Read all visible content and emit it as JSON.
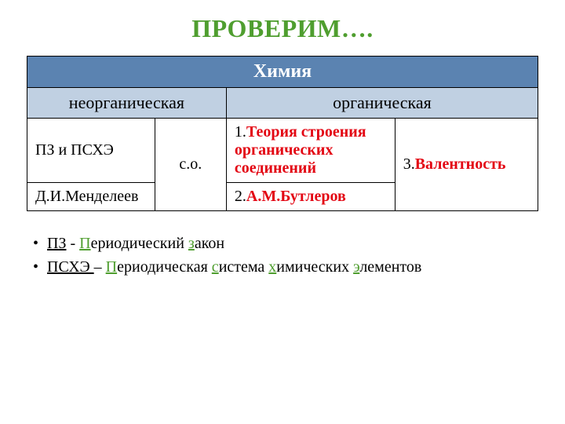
{
  "title": {
    "text": "ПРОВЕРИМ….",
    "color": "#4f9e2f",
    "fontsize": 32
  },
  "colors": {
    "border": "#000000",
    "header_bg": "#5b83b1",
    "header_fg": "#ffffff",
    "sub_bg": "#c0d0e2",
    "sub_fg": "#000000",
    "cell_bg": "#ffffff",
    "cell_fg": "#000000",
    "red": "#e30613",
    "accent_letter": "#4f9e2f",
    "bullet_color": "#000000",
    "def_text": "#000000"
  },
  "fontsize": {
    "header": 24,
    "sub": 22,
    "cell": 20,
    "def": 20
  },
  "table": {
    "col_widths_pct": [
      25,
      14,
      33,
      28
    ],
    "header_span": 4,
    "header": "Химия",
    "sub": {
      "left_span": 2,
      "right_span": 2,
      "left": "неорганическая",
      "right": "органическая"
    },
    "rows": [
      {
        "c1": "ПЗ и ПСХЭ",
        "c2": {
          "text": "с.о.",
          "rowspan": 2
        },
        "c3": {
          "prefix": "1.",
          "red": "Теория строения органических соединений"
        },
        "c4": {
          "prefix": "3.",
          "red": "Валентность",
          "rowspan": 2
        }
      },
      {
        "c1": "Д.И.Менделеев",
        "c3": {
          "prefix": "2.",
          "red": "А.М.Бутлеров"
        }
      }
    ]
  },
  "definitions": [
    {
      "abbr": "ПЗ",
      "sep": " - ",
      "parts": [
        {
          "letter": "П",
          "rest": "ериодический "
        },
        {
          "letter": "з",
          "rest": "акон"
        }
      ]
    },
    {
      "abbr": "ПСХЭ ",
      "sep": "– ",
      "parts": [
        {
          "letter": "П",
          "rest": "ериодическая "
        },
        {
          "letter": "с",
          "rest": "истема "
        },
        {
          "letter": "х",
          "rest": "имических "
        },
        {
          "letter": "э",
          "rest": "лементов"
        }
      ]
    }
  ]
}
